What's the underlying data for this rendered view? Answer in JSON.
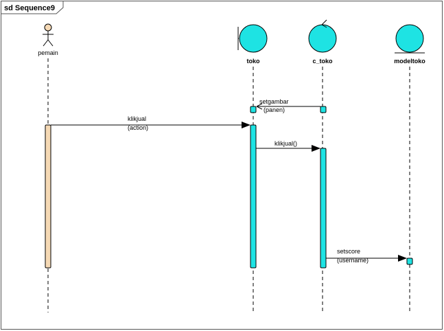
{
  "frame": {
    "title": "sd Sequence9"
  },
  "lifelines": {
    "pemain": {
      "name": "pemain",
      "kind": "actor"
    },
    "toko": {
      "name": "toko",
      "kind": "boundary"
    },
    "c_toko": {
      "name": "c_toko",
      "kind": "control"
    },
    "modeltoko": {
      "name": "modeltoko",
      "kind": "entity"
    }
  },
  "messages": {
    "setgambar": {
      "line1": "setgambar",
      "line2": "(panen)",
      "from": "c_toko",
      "to": "toko"
    },
    "klikjual_action": {
      "line1": "klikjual",
      "line2": "(action)",
      "from": "pemain",
      "to": "toko"
    },
    "klikjual_call": {
      "line1": "klikjual()",
      "from": "toko",
      "to": "c_toko"
    },
    "setscore": {
      "line1": "setscore",
      "line2": "(username)",
      "from": "c_toko",
      "to": "modeltoko"
    }
  },
  "colors": {
    "actor_activation": "#f5d9b5",
    "object_fill": "#1ee3e3",
    "outline": "#000000",
    "frame_border": "#555555"
  }
}
